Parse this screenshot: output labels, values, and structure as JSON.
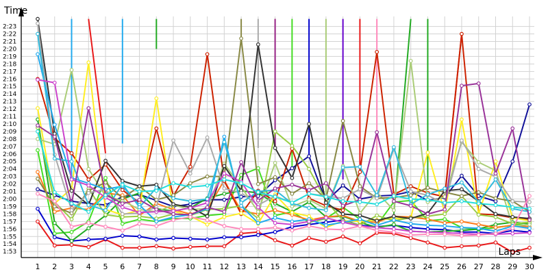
{
  "chart_data": {
    "type": "line",
    "ylabel": "Time",
    "xlabel": "Laps",
    "x": [
      1,
      2,
      3,
      4,
      5,
      6,
      7,
      8,
      9,
      10,
      11,
      12,
      13,
      14,
      15,
      16,
      17,
      18,
      19,
      20,
      21,
      22,
      23,
      24,
      25,
      26,
      27,
      28,
      29,
      30
    ],
    "ylim_seconds": [
      6770,
      8660
    ],
    "y_tick_labels": [
      "1:53",
      "1:54",
      "1:55",
      "1:56",
      "1:57",
      "1:58",
      "1:59",
      "2:00",
      "2:01",
      "2:02",
      "2:03",
      "2:04",
      "2:05",
      "2:06",
      "2:07",
      "2:08",
      "2:09",
      "2:10",
      "2:11",
      "2:12",
      "2:13",
      "2:14",
      "2:15",
      "2:16",
      "2:17",
      "2:18",
      "2:19",
      "2:20",
      "2:21",
      "2:22",
      "2:23"
    ],
    "grid": true,
    "legend": "none",
    "series": [
      {
        "color": "#e8191a",
        "values": [
          "1:57.0",
          "1:53.8",
          "1:53.9",
          "1:53.6",
          "1:54.6",
          "1:53.5",
          "1:53.5",
          "1:53.7",
          "1:53.4",
          "1:53.6",
          "1:53.7",
          "1:53.7",
          "1:55.4",
          "1:55.6",
          "1:54.5",
          "1:53.8",
          "1:54.8",
          "1:54.3",
          "1:55.0",
          "1:54.1",
          "1:55.5",
          "1:55.4",
          "1:54.8",
          "1:54.2",
          "1:53.5",
          "1:53.7",
          "1:53.8",
          "1:54.2",
          "1:52.9",
          "1:53.5"
        ]
      },
      {
        "color": "#0000cc",
        "values": [
          "1:58.7",
          "1:54.9",
          "1:54.4",
          "1:54.6",
          "1:54.7",
          "1:55.1",
          "1:55.0",
          "1:54.6",
          "1:54.8",
          "1:54.7",
          "1:54.6",
          "1:54.9",
          "1:54.9",
          "1:55.2",
          "1:55.6",
          "1:56.3",
          "1:56.6",
          "1:56.9",
          "1:57.2",
          "1:56.5",
          "1:56.3",
          "1:56.5",
          "1:56.2",
          "1:56.0",
          "1:55.9",
          "1:55.6",
          "1:55.6",
          "1:55.4",
          "1:55.8",
          "1:55.6"
        ]
      },
      {
        "color": "#111199",
        "values": [
          "2:01.3",
          "2:00.5",
          "1:59.7",
          "1:59.4",
          "1:59.2",
          "2:00.3",
          "2:00.6",
          "1:59.8",
          "1:59.0",
          "1:59.3",
          "1:59.9",
          "1:59.9",
          "2:00.3",
          "2:00.4",
          "2:02.5",
          "2:04.1",
          "2:05.7",
          "1:59.7",
          "2:01.8",
          "2:00.0",
          "2:00.4",
          "2:00.5",
          "2:01.0",
          "1:59.8",
          "2:00.2",
          "2:03.1",
          "2:00.4",
          "1:59.7",
          "2:05.0",
          "2:12.6"
        ]
      },
      {
        "color": "#44dd22",
        "values": [
          "2:06.5",
          "1:55.4",
          "1:55.6",
          "1:57.0",
          "2:02.8",
          "1:56.7",
          "1:57.3",
          "1:57.0",
          "1:57.4",
          "1:57.4",
          "1:57.8",
          "1:58.0",
          "2:03.2",
          "2:04.1",
          "1:57.8",
          "1:58.3",
          "1:56.9",
          "1:57.4",
          "1:58.9",
          "1:57.3",
          "1:56.5",
          "1:59.6",
          "1:59.8",
          "1:57.1",
          "1:57.3",
          "1:56.2",
          "1:55.9",
          "1:56.2",
          "1:56.5",
          "1:56.9"
        ]
      },
      {
        "color": "#22aa22",
        "values": [
          "2:10.6",
          "1:56.8",
          "1:54.4",
          "1:56.1",
          "1:57.8",
          "2:00.0",
          "2:00.8",
          "1:58.7",
          "1:58.4",
          "1:58.8",
          "2:00.1",
          "2:00.7",
          "2:01.1",
          "2:00.8",
          "1:59.4",
          "1:58.3",
          "1:59.6",
          "1:57.6",
          "1:57.7",
          "1:56.9",
          "1:56.2",
          "1:56.6",
          "1:55.7",
          "1:55.6",
          "1:55.7",
          "1:55.8",
          "1:56.0",
          "1:56.6",
          "1:56.9",
          "1:56.7"
        ]
      },
      {
        "color": "#ff7a1a",
        "values": [
          "2:03.6",
          "1:58.3",
          "1:58.8",
          "1:58.6",
          "2:00.8",
          "2:00.5",
          "1:57.8",
          "1:59.4",
          "1:58.6",
          "1:58.0",
          "1:58.6",
          "2:02.5",
          "1:58.4",
          "1:58.0",
          "1:58.5",
          "1:57.9",
          "1:57.2",
          "1:57.6",
          "1:57.8",
          "1:57.0",
          "1:56.9",
          "1:57.7",
          "1:57.6",
          "1:57.3",
          "1:56.8",
          "1:57.0",
          "1:56.6",
          "1:56.2",
          "1:56.5",
          "1:56.3"
        ]
      },
      {
        "color": "#cc2200",
        "values": [
          "2:16.0",
          "2:08.1",
          "2:06.1",
          "2:02.6",
          "2:04.6",
          "2:01.2",
          "1:59.5",
          "2:09.4",
          "2:00.4",
          "2:04.3",
          "2:19.3",
          "2:02.4",
          "1:58.0",
          "2:01.1",
          "1:59.7",
          "2:06.7",
          "2:00.1",
          "1:59.1",
          "1:58.5",
          "2:03.6",
          "2:19.6",
          "2:00.6",
          "2:01.7",
          "2:00.8",
          "2:00.3",
          "2:22.0",
          "1:58.0",
          "1:57.9",
          "1:57.5",
          "1:57.3"
        ]
      },
      {
        "color": "#ffee22",
        "values": [
          "2:12.1",
          "1:59.4",
          "2:01.4",
          "2:18.2",
          "1:58.6",
          "1:57.9",
          "1:58.5",
          "2:13.4",
          "1:58.4",
          "1:57.7",
          "1:56.6",
          "1:57.6",
          "1:58.1",
          "1:56.7",
          "2:00.6",
          "1:58.2",
          "1:57.7",
          "1:56.2",
          "1:57.1",
          "1:57.0",
          "1:57.2",
          "1:57.4",
          "1:57.5",
          "2:06.2",
          "1:58.2",
          "2:10.6",
          "1:58.0",
          "2:05.0",
          "1:57.5",
          "1:57.1"
        ]
      },
      {
        "color": "#99cc44",
        "values": [
          "2:09.5",
          "1:59.6",
          "1:57.3",
          "2:01.4",
          "1:57.9",
          "1:57.6",
          "1:57.7",
          "1:57.4",
          "1:58.0",
          "1:57.8",
          "1:58.6",
          "1:58.7",
          "1:59.1",
          "1:57.4",
          "2:09.0",
          "2:07.1",
          "2:04.0",
          "1:59.8",
          "1:57.1",
          "1:56.5",
          "1:57.8",
          "1:57.1",
          "1:57.5",
          "1:57.7",
          "1:58.0",
          "2:00.4",
          "1:57.9",
          "1:57.6",
          "1:56.7",
          "1:56.9"
        ]
      },
      {
        "color": "#aacc77",
        "values": [
          "2:08.0",
          "2:07.3",
          "2:17.2",
          "2:04.0",
          "2:00.4",
          "1:59.8",
          "1:58.6",
          "1:58.3",
          "1:59.2",
          "1:58.6",
          "1:58.7",
          "2:04.7",
          "2:01.6",
          "1:58.3",
          "2:04.8",
          "1:59.0",
          "1:59.9",
          "1:58.7",
          "2:04.4",
          "1:58.1",
          "2:00.9",
          "1:58.5",
          "2:18.4",
          "1:59.6",
          "2:00.3",
          "2:07.6",
          "2:04.9",
          "2:03.8",
          "1:56.4",
          "1:56.6"
        ]
      },
      {
        "color": "#888844",
        "values": [
          "2:02.7",
          "1:59.0",
          "1:58.1",
          "2:01.1",
          "2:02.2",
          "2:00.1",
          "2:01.7",
          "1:59.9",
          "2:00.5",
          "2:02.1",
          "2:03.0",
          "2:03.0",
          "2:21.4",
          "2:02.0",
          "2:02.9",
          "2:00.7",
          "2:02.1",
          "2:00.0",
          "2:10.4",
          "2:01.7",
          "2:00.1",
          "2:00.2",
          "2:00.5",
          "2:01.5",
          "2:00.9",
          "2:00.4",
          "2:00.9",
          "2:00.1",
          "1:59.7",
          "1:58.3"
        ]
      },
      {
        "color": "#333333",
        "values": [
          "2:24.0",
          "2:08.7",
          "2:01.1",
          "1:59.2",
          "2:05.1",
          "2:02.4",
          "2:01.7",
          "2:01.9",
          "1:59.3",
          "1:58.9",
          "1:57.7",
          "2:04.4",
          "2:01.1",
          "2:20.6",
          "2:06.8",
          "2:02.8",
          "2:10.0",
          "1:59.5",
          "1:58.0",
          "1:57.8",
          "1:57.1",
          "1:57.7",
          "1:57.4",
          "1:58.1",
          "2:01.1",
          "2:01.3",
          "1:59.7",
          "1:58.0",
          "1:57.6",
          "1:57.4"
        ]
      },
      {
        "color": "#aaaaaa",
        "values": [
          "2:23.4",
          "2:05.9",
          "1:58.5",
          "2:00.8",
          "2:01.3",
          "1:58.0",
          "1:58.1",
          "1:58.9",
          "2:07.8",
          "2:03.4",
          "2:08.2",
          "2:01.4",
          "2:00.8",
          "1:59.2",
          "2:00.4",
          "1:59.5",
          "2:00.7",
          "2:00.4",
          "2:00.1",
          "2:01.3",
          "2:00.1",
          "2:06.7",
          "2:01.0",
          "2:00.5",
          "1:59.3",
          "2:07.8",
          "2:04.0",
          "2:03.0",
          "1:59.7",
          "1:59.6"
        ]
      },
      {
        "color": "#22aaee",
        "values": [
          "2:19.3",
          "2:09.9",
          "2:02.8",
          "2:02.1",
          "2:01.3",
          "2:01.7",
          "1:59.2",
          "1:57.0",
          "1:57.6",
          "1:57.9",
          "1:58.7",
          "2:08.3",
          "1:59.1",
          "1:56.8",
          "1:57.5",
          "1:57.0",
          "1:57.3",
          "1:56.5",
          "1:56.9",
          "1:57.3",
          "1:56.5",
          "1:57.2",
          "1:56.7",
          "1:56.5",
          "1:56.4",
          "1:56.2",
          "1:56.1",
          "1:55.7",
          "1:56.4",
          "1:56.1"
        ]
      },
      {
        "color": "#33bbdd",
        "values": [
          "2:22.0",
          "2:05.4",
          "2:05.0",
          "1:59.2",
          "1:58.5",
          "2:02.0",
          "1:58.9",
          "2:01.5",
          "2:00.1",
          "1:59.7",
          "2:00.0",
          "2:07.6",
          "1:59.5",
          "2:01.0",
          "2:01.2",
          "1:59.4",
          "1:58.8",
          "1:58.5",
          "2:04.2",
          "2:04.3",
          "2:00.5",
          "2:06.9",
          "1:59.3",
          "2:00.6",
          "2:01.4",
          "2:02.2",
          "1:59.6",
          "2:02.6",
          "1:58.7",
          "1:58.3"
        ]
      },
      {
        "color": "#cc44cc",
        "values": [
          "2:15.9",
          "2:15.5",
          "2:02.6",
          "2:01.8",
          "2:00.2",
          "1:58.9",
          "1:58.2",
          "1:58.3",
          "1:58.4",
          "1:58.8",
          "1:59.5",
          "2:03.4",
          "2:02.3",
          "1:58.9",
          "1:56.8",
          "1:56.6",
          "1:57.0",
          "1:57.5",
          "1:56.9",
          "1:56.4",
          "1:56.2",
          "1:56.0",
          "1:55.7",
          "1:55.6",
          "1:55.5",
          "1:55.4",
          "1:55.3",
          "1:55.3",
          "1:55.4",
          "1:55.5"
        ]
      },
      {
        "color": "#993399",
        "values": [
          "2:09.8",
          "2:08.3",
          "1:59.3",
          "2:12.1",
          "2:00.6",
          "1:59.4",
          "1:59.9",
          "1:58.6",
          "1:58.0",
          "1:57.9",
          "1:58.9",
          "1:58.3",
          "2:04.9",
          "1:59.8",
          "2:01.4",
          "2:01.9",
          "2:01.2",
          "2:02.1",
          "1:59.1",
          "1:59.9",
          "2:08.9",
          "1:59.7",
          "1:59.1",
          "1:58.0",
          "1:58.6",
          "2:15.1",
          "2:15.4",
          "2:03.4",
          "2:09.4",
          "1:57.2"
        ]
      },
      {
        "color": "#ff88bb",
        "values": [
          "2:00.7",
          "1:59.7",
          "1:56.3",
          "1:56.8",
          "1:56.3",
          "1:55.8",
          "1:56.7",
          "1:56.4",
          "1:57.2",
          "1:57.6",
          "1:57.2",
          "1:56.4",
          "1:56.0",
          "1:56.0",
          "1:56.2",
          "1:55.8",
          "1:56.4",
          "1:56.0",
          "1:55.9",
          "1:56.4",
          "1:55.8",
          "1:55.6",
          "1:55.2",
          "1:55.3",
          "1:55.3",
          "1:55.1",
          "1:55.2",
          "1:55.4",
          "1:56.1",
          "2:00.4"
        ]
      },
      {
        "color": "#22dddd",
        "values": [
          "2:09.0",
          "2:00.9",
          "1:59.4",
          "1:58.3",
          "2:00.5",
          "2:01.9",
          "2:01.0",
          "2:01.1",
          "2:02.1",
          "2:01.6",
          "2:01.8",
          "2:02.6",
          "2:02.1",
          "2:00.9",
          "2:00.3",
          "1:59.5",
          "2:00.7",
          "2:00.3",
          "1:59.7",
          "1:59.6",
          "1:59.3",
          "2:00.4",
          "2:00.0",
          "1:59.9",
          "1:59.5",
          "1:59.7",
          "1:59.4",
          "1:59.2",
          "1:58.9",
          "1:58.7"
        ]
      }
    ],
    "spikes": [
      {
        "color": "#e8191a",
        "x": [
          4,
          5
        ],
        "values": [
          "2:24.0",
          "2:06.1"
        ]
      },
      {
        "color": "#22aaee",
        "x": [
          3,
          3
        ],
        "values": [
          "2:02.8",
          "2:24.0"
        ]
      },
      {
        "color": "#22aaee",
        "x": [
          6,
          6
        ],
        "values": [
          "2:24.0",
          "2:07.4"
        ]
      },
      {
        "color": "#22aa22",
        "x": [
          8,
          8
        ],
        "values": [
          "2:24.0",
          "2:20.0"
        ]
      },
      {
        "color": "#888844",
        "x": [
          13,
          13
        ],
        "values": [
          "2:21.4",
          "2:24.0"
        ]
      },
      {
        "color": "#aaaaaa",
        "x": [
          14,
          14
        ],
        "values": [
          "2:06.8",
          "2:24.0"
        ]
      },
      {
        "color": "#cc2200",
        "x": [
          15,
          15
        ],
        "values": [
          "2:24.0",
          "2:06.7"
        ]
      },
      {
        "color": "#993399",
        "x": [
          15,
          15
        ],
        "values": [
          "2:06.6",
          "2:24.0"
        ]
      },
      {
        "color": "#44dd22",
        "x": [
          16,
          16
        ],
        "values": [
          "2:04.0",
          "2:24.0"
        ]
      },
      {
        "color": "#0000cc",
        "x": [
          17,
          17
        ],
        "values": [
          "2:24.0",
          "2:05.8"
        ]
      },
      {
        "color": "#aacc77",
        "x": [
          18,
          18
        ],
        "values": [
          "1:59.3",
          "2:24.0"
        ]
      },
      {
        "color": "#6600cc",
        "x": [
          19,
          19
        ],
        "values": [
          "2:24.0",
          "2:02.6"
        ]
      },
      {
        "color": "#e8191a",
        "x": [
          20,
          20
        ],
        "values": [
          "2:24.0",
          "2:03.4"
        ]
      },
      {
        "color": "#ff88bb",
        "x": [
          21,
          21
        ],
        "values": [
          "2:24.0",
          "2:00.0"
        ]
      },
      {
        "color": "#22aa22",
        "x": [
          22,
          23
        ],
        "values": [
          "1:58.0",
          "2:24.0"
        ]
      },
      {
        "color": "#22aa22",
        "x": [
          24,
          24
        ],
        "values": [
          "2:24.0",
          "2:01.3"
        ]
      },
      {
        "color": "#e8191a",
        "x": [
          25,
          26
        ],
        "values": [
          "2:00.0",
          "2:22.0"
        ]
      }
    ]
  }
}
